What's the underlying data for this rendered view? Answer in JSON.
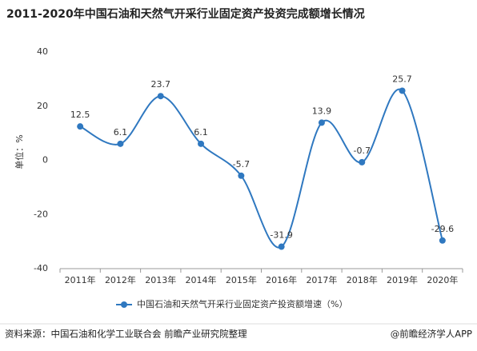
{
  "chart_data": {
    "type": "line",
    "title": "2011-2020年中国石油和天然气开采行业固定资产投资完成额增长情况",
    "y_label": "单位：%",
    "categories": [
      "2011年",
      "2012年",
      "2013年",
      "2014年",
      "2015年",
      "2016年",
      "2017年",
      "2018年",
      "2019年",
      "2020年"
    ],
    "series": [
      {
        "name": "中国石油和天然气开采行业固定资产投资额增速（%）",
        "color": "#2f78c0",
        "values": [
          12.5,
          6.1,
          23.7,
          6.1,
          -5.7,
          -31.9,
          13.9,
          -0.7,
          25.7,
          -29.6
        ]
      }
    ],
    "ylim": [
      -40,
      40
    ],
    "yticks": [
      -40,
      -20,
      0,
      20,
      40
    ],
    "grid": false,
    "smooth": true,
    "source": "资料来源：中国石油和化学工业联合会 前瞻产业研究院整理",
    "credit": "@前瞻经济学人APP"
  }
}
